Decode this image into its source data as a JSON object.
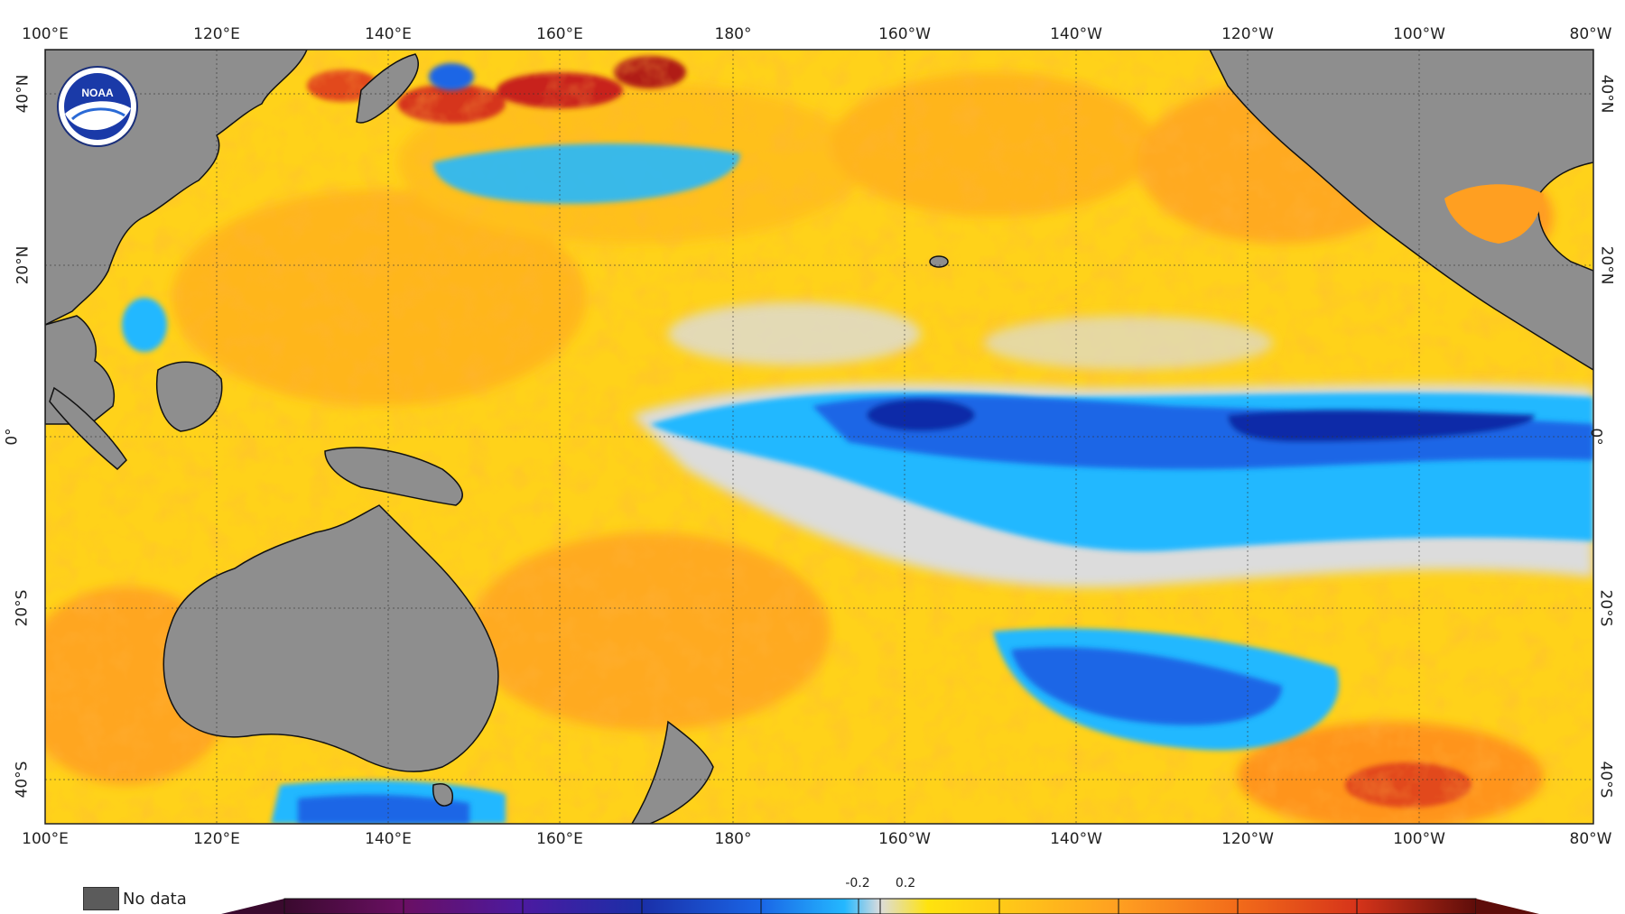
{
  "map": {
    "top_lon_labels": [
      "100°E",
      "120°E",
      "140°E",
      "160°E",
      "180°",
      "160°W",
      "140°W",
      "120°W",
      "100°W",
      "80°W"
    ],
    "bottom_lon_labels": [
      "100°E",
      "120°E",
      "140°E",
      "160°E",
      "180°",
      "160°W",
      "140°W",
      "120°W",
      "100°W",
      "80°W"
    ],
    "left_lat_labels": [
      "40°N",
      "20°N",
      "0°",
      "20°S",
      "40°S"
    ],
    "right_lat_labels": [
      "40°N",
      "20°N",
      "0°",
      "20°S",
      "40°S"
    ],
    "logo": "NOAA",
    "colors": {
      "land": "#8e8e8e",
      "no_data": "#5b5b5b",
      "warm_yellow": "#ffd21a",
      "warm_orange": "#ffa421",
      "hot_red": "#c8221a",
      "neutral_gray": "#dcdcdc",
      "cool_light_blue": "#24b8ff",
      "cool_blue": "#1a66e6",
      "cold_navy": "#0a2aa8"
    }
  },
  "legend": {
    "no_data_label": "No data",
    "ticks": [
      "-0.2",
      "0.2"
    ],
    "colorbar_colors": [
      "#3a0a2e",
      "#6a0f63",
      "#4b1aa0",
      "#1a2fa8",
      "#1a66e6",
      "#24b8ff",
      "#dcdcdc",
      "#ffe30e",
      "#ffc21a",
      "#ff9f21",
      "#f26b1a",
      "#d6341a",
      "#9e1a12",
      "#5e0d0a"
    ]
  }
}
